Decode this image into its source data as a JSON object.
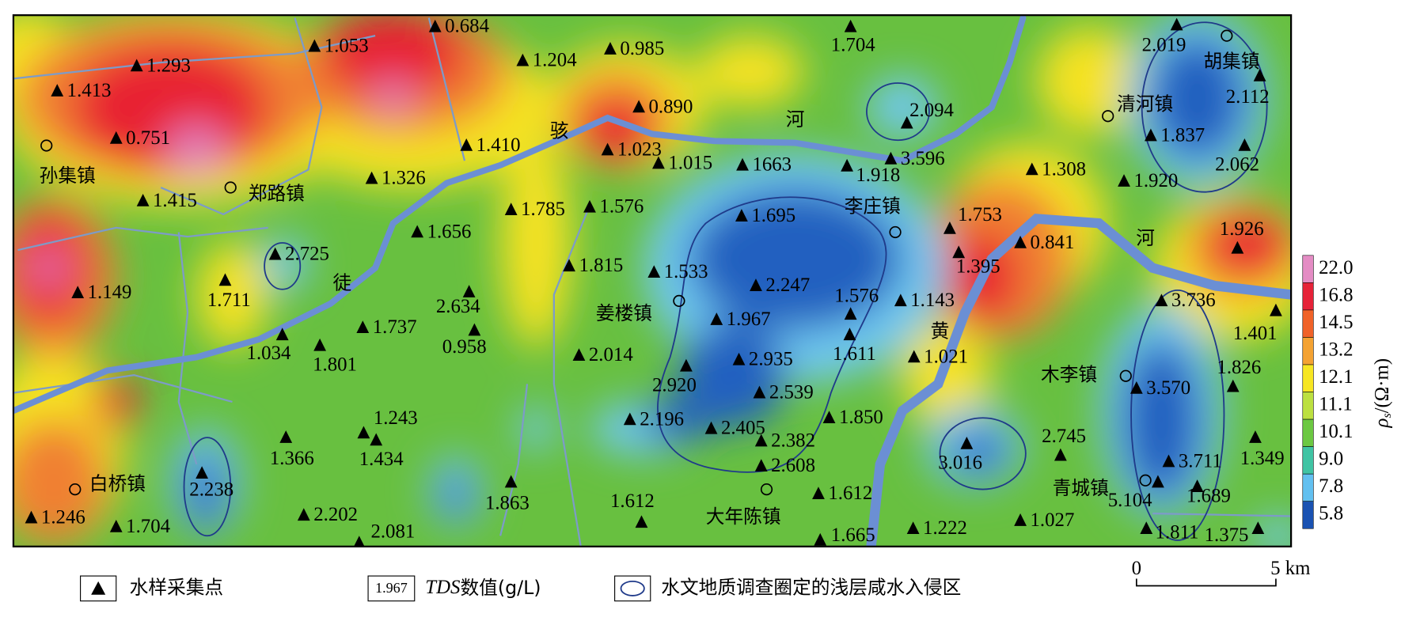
{
  "map": {
    "samples": [
      "1.413",
      "1.293",
      "1.053",
      "0.684",
      "1.204",
      "0.985",
      "0.890",
      "1.023",
      "0.751",
      "1.415",
      "1.326",
      "1.410",
      "1.015",
      "1663",
      "1.704",
      "2.094",
      "3.596",
      "1.918",
      "1.308",
      "2.019",
      "2.112",
      "1.837",
      "2.062",
      "1.920",
      "1.785",
      "1.576",
      "1.695",
      "1.656",
      "2.725",
      "1.711",
      "1.149",
      "1.815",
      "1.533",
      "2.247",
      "1.753",
      "1.395",
      "0.841",
      "1.926",
      "2.634",
      "0.958",
      "1.576",
      "1.143",
      "1.967",
      "1.737",
      "1.034",
      "1.801",
      "1.611",
      "3.736",
      "1.401",
      "2.014",
      "2.935",
      "1.021",
      "2.920",
      "2.539",
      "1.826",
      "3.570",
      "1.243",
      "1.434",
      "1.366",
      "2.196",
      "2.405",
      "1.850",
      "2.382",
      "3.016",
      "2.745",
      "1.349",
      "3.711",
      "2.608",
      "2.238",
      "1.863",
      "1.612",
      "1.612",
      "5.104",
      "1.689",
      "2.202",
      "1.246",
      "1.704",
      "2.081",
      "1.222",
      "1.027",
      "1.665",
      "1.811",
      "1.375"
    ],
    "towns": [
      "孙集镇",
      "郑路镇",
      "李庄镇",
      "清河镇",
      "胡集镇",
      "姜楼镇",
      "木李镇",
      "白桥镇",
      "大年陈镇",
      "青城镇"
    ],
    "rivers": [
      "骇",
      "河",
      "徒",
      "黄",
      "河"
    ],
    "colorbar": {
      "symbol": "ρ",
      "subscript": "s",
      "unit": "/(Ω·m)",
      "levels": [
        {
          "label": "22.0",
          "color": "#e48cc4"
        },
        {
          "label": "16.8",
          "color": "#e62238"
        },
        {
          "label": "14.5",
          "color": "#f06228"
        },
        {
          "label": "13.2",
          "color": "#f4a232"
        },
        {
          "label": "12.1",
          "color": "#f7e622"
        },
        {
          "label": "11.1",
          "color": "#bce040"
        },
        {
          "label": "10.1",
          "color": "#6cc842"
        },
        {
          "label": "9.0",
          "color": "#40c4a4"
        },
        {
          "label": "7.8",
          "color": "#62c0f0"
        },
        {
          "label": "5.8",
          "color": "#1a52b2"
        }
      ]
    },
    "legend": {
      "sample_point": "水样采集点",
      "sample_value": "1.967",
      "tds": "TDS",
      "tds_unit": "数值(g/L)",
      "zone": "水文地质调查圈定的浅层咸水入侵区"
    },
    "scale": {
      "start": "0",
      "end": "5 km"
    }
  }
}
